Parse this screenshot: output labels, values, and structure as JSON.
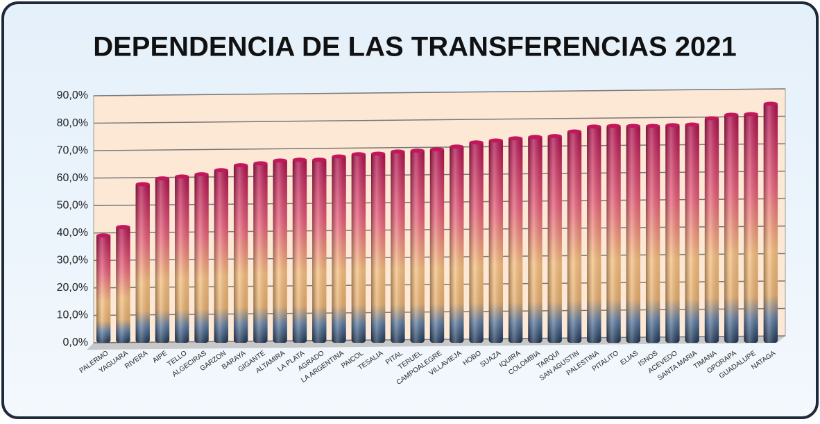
{
  "chart_data": {
    "type": "bar",
    "title": "DEPENDENCIA DE LAS TRANSFERENCIAS 2021",
    "categories": [
      "PALERMO",
      "YAGUARA",
      "RIVERA",
      "AIPE",
      "TELLO",
      "ALGECIRAS",
      "GARZON",
      "BARAYA",
      "GIGANTE",
      "ALTAMIRA",
      "LA PLATA",
      "AGRADO",
      "LA ARGENTINA",
      "PAICOL",
      "TESALIA",
      "PITAL",
      "TERUEL",
      "CAMPOALEGRE",
      "VILLAVIEJA",
      "HOBO",
      "SUAZA",
      "IQUIRA",
      "COLOMBIA",
      "TARQUI",
      "SAN AGUSTIN",
      "PALESTINA",
      "PITALITO",
      "ELIAS",
      "ISNOS",
      "ACEVEDO",
      "SANTA MARIA",
      "TIMANA",
      "OPORAPA",
      "GUADALUPE",
      "NATAGA"
    ],
    "values": [
      39.6,
      42.7,
      58.3,
      60.4,
      61.1,
      61.9,
      63.4,
      65.2,
      65.9,
      66.9,
      67.2,
      67.2,
      68.4,
      69.2,
      69.4,
      70.2,
      70.5,
      71.0,
      72.0,
      73.5,
      74.2,
      75.0,
      75.5,
      75.8,
      77.5,
      79.3,
      79.5,
      79.5,
      79.5,
      79.8,
      80.0,
      82.3,
      83.6,
      83.8,
      87.6
    ],
    "color": "#c2185b",
    "ylim": [
      0,
      90
    ],
    "yticks": [
      {
        "value": 0,
        "label": "0,0%"
      },
      {
        "value": 10,
        "label": "10,0%"
      },
      {
        "value": 20,
        "label": "20,0%"
      },
      {
        "value": 30,
        "label": "30,0%"
      },
      {
        "value": 40,
        "label": "40,0%"
      },
      {
        "value": 50,
        "label": "50,0%"
      },
      {
        "value": 60,
        "label": "60,0%"
      },
      {
        "value": 70,
        "label": "70,0%"
      },
      {
        "value": 80,
        "label": "80,0%"
      },
      {
        "value": 90,
        "label": "90,0%"
      }
    ],
    "grid": true
  }
}
